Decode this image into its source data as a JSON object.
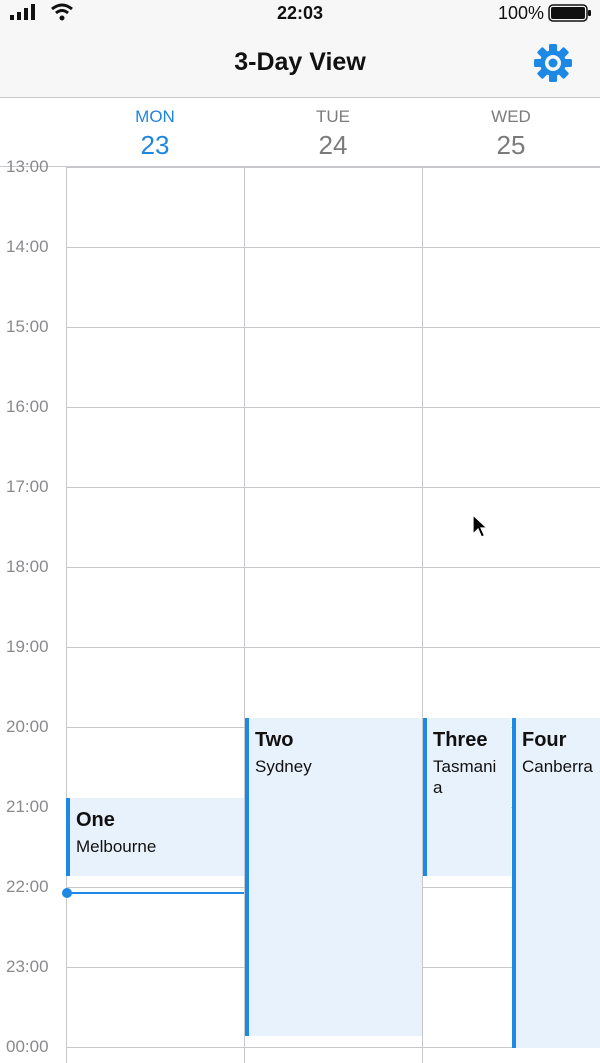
{
  "status": {
    "time": "22:03",
    "battery": "100%"
  },
  "nav": {
    "title": "3-Day View",
    "settings_icon": "gear-icon"
  },
  "days": [
    {
      "name": "MON",
      "num": "23",
      "today": true
    },
    {
      "name": "TUE",
      "num": "24",
      "today": false
    },
    {
      "name": "WED",
      "num": "25",
      "today": false
    }
  ],
  "hours": [
    "13:00",
    "14:00",
    "15:00",
    "16:00",
    "17:00",
    "18:00",
    "19:00",
    "20:00",
    "21:00",
    "22:00",
    "23:00",
    "00:00"
  ],
  "events": [
    {
      "title": "One",
      "location": "Melbourne",
      "day": "MON",
      "start": "21:00",
      "end": "22:00"
    },
    {
      "title": "Two",
      "location": "Sydney",
      "day": "TUE",
      "start": "20:00",
      "end": "00:00"
    },
    {
      "title": "Three",
      "location": "Tasmania",
      "day": "WED",
      "start": "20:00",
      "end": "22:00"
    },
    {
      "title": "Four",
      "location": "Canberra",
      "day": "WED",
      "start": "20:00",
      "end": "00:00"
    }
  ],
  "accent_color": "#1e88e5"
}
